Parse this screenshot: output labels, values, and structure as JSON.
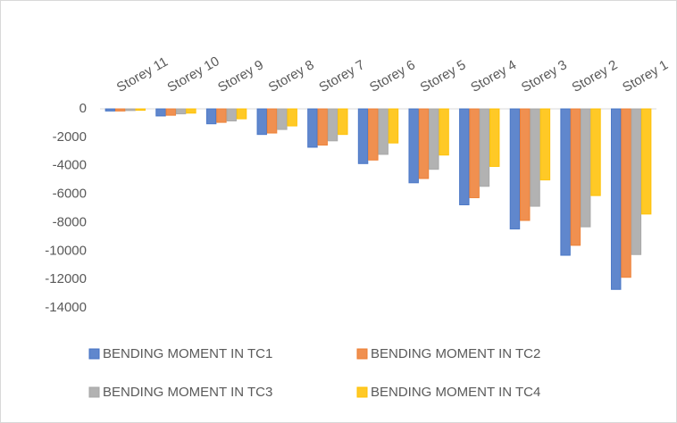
{
  "chart_data": {
    "type": "bar",
    "categories": [
      "Storey 11",
      "Storey 10",
      "Storey 9",
      "Storey 8",
      "Storey 7",
      "Storey 6",
      "Storey 5",
      "Storey 4",
      "Storey 3",
      "Storey 2",
      "Storey 1"
    ],
    "series": [
      {
        "name": "BENDING MOMENT IN TC1",
        "color": "#4472c4",
        "values": [
          -150,
          -500,
          -1050,
          -1800,
          -2700,
          -3850,
          -5200,
          -6750,
          -8450,
          -10300,
          -12700
        ]
      },
      {
        "name": "BENDING MOMENT IN TC2",
        "color": "#ed7d31",
        "values": [
          -150,
          -450,
          -950,
          -1700,
          -2550,
          -3600,
          -4900,
          -6250,
          -7850,
          -9600,
          -11850
        ]
      },
      {
        "name": "BENDING MOMENT IN TC3",
        "color": "#a5a5a5",
        "values": [
          -120,
          -350,
          -850,
          -1450,
          -2250,
          -3200,
          -4250,
          -5450,
          -6850,
          -8300,
          -10250
        ]
      },
      {
        "name": "BENDING MOMENT IN TC4",
        "color": "#ffc000",
        "values": [
          -100,
          -300,
          -700,
          -1200,
          -1800,
          -2400,
          -3250,
          -4050,
          -5000,
          -6100,
          -7400
        ]
      }
    ],
    "ylim": [
      -14000,
      0
    ],
    "yticks": [
      0,
      -2000,
      -4000,
      -6000,
      -8000,
      -10000,
      -12000,
      -14000
    ],
    "grid": false,
    "legend": "bottom"
  }
}
